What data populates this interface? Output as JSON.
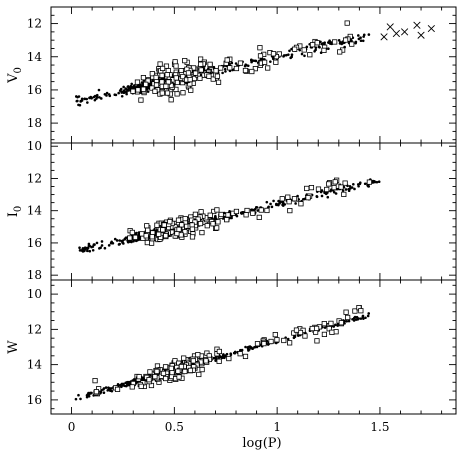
{
  "chart_data": {
    "type": "scatter",
    "xlabel": "log(P)",
    "x_ticks": [
      "0",
      "0.5",
      "1",
      "1.5"
    ],
    "xlim": [
      -0.1,
      1.87
    ],
    "panels": [
      {
        "ylabel": "V",
        "ylabel_sub": "0",
        "ylim": [
          11,
          19.2
        ],
        "y_inverted": true,
        "y_ticks": [
          "12",
          "14",
          "16",
          "18"
        ],
        "relation": {
          "slope": -2.76,
          "intercept": 16.75,
          "scatter": 0.25
        },
        "filled_x_range": [
          0.02,
          1.45
        ],
        "open_x_range": [
          0.28,
          1.37
        ],
        "open_scatter": 0.7,
        "crosses": [
          [
            1.52,
            12.8
          ],
          [
            1.55,
            12.2
          ],
          [
            1.58,
            12.6
          ],
          [
            1.62,
            12.5
          ],
          [
            1.68,
            12.1
          ],
          [
            1.7,
            12.7
          ],
          [
            1.75,
            12.3
          ]
        ]
      },
      {
        "ylabel": "I",
        "ylabel_sub": "0",
        "ylim": [
          9.8,
          18.3
        ],
        "y_inverted": true,
        "y_ticks": [
          "10",
          "12",
          "14",
          "16",
          "18"
        ],
        "relation": {
          "slope": -2.96,
          "intercept": 16.57,
          "scatter": 0.2
        },
        "filled_x_range": [
          0.02,
          1.5
        ],
        "open_x_range": [
          0.28,
          1.45
        ],
        "open_scatter": 0.55,
        "crosses": []
      },
      {
        "ylabel": "W",
        "ylabel_sub": "",
        "ylim": [
          9.2,
          16.8
        ],
        "y_inverted": true,
        "y_ticks": [
          "10",
          "12",
          "14",
          "16"
        ],
        "relation": {
          "slope": -3.31,
          "intercept": 15.97,
          "scatter": 0.12
        },
        "filled_x_range": [
          0.02,
          1.45
        ],
        "open_x_range": [
          0.1,
          1.42
        ],
        "open_scatter": 0.45,
        "crosses": []
      }
    ]
  }
}
